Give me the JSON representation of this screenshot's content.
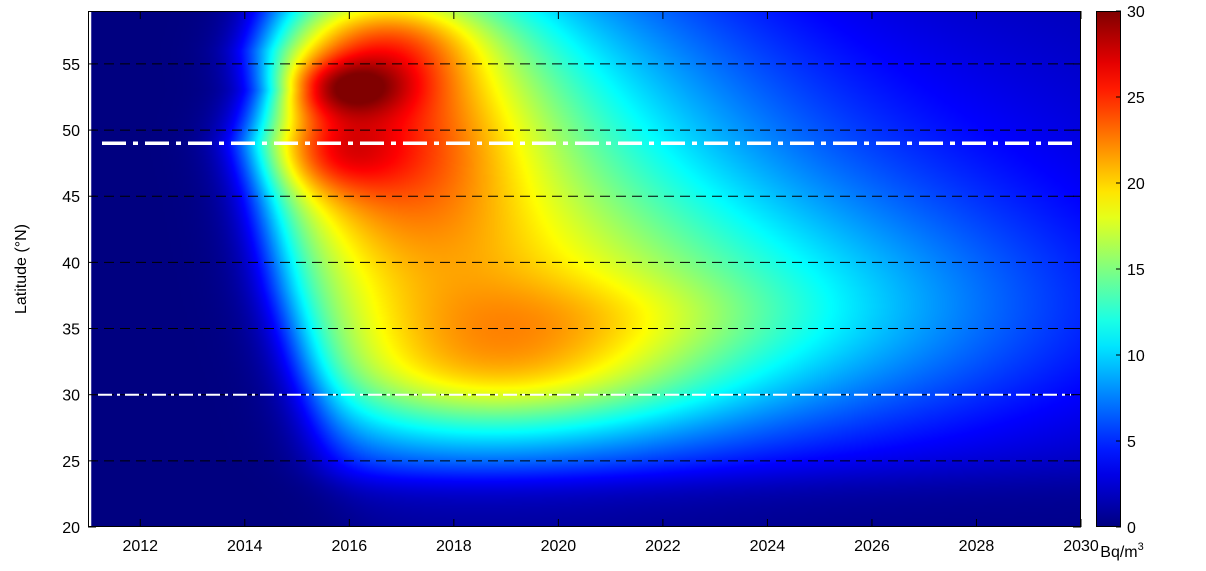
{
  "chart_data": {
    "type": "heatmap",
    "title": "",
    "xlabel": "",
    "ylabel": "Latitude (°N)",
    "xlim": [
      2011,
      2030
    ],
    "ylim": [
      20,
      59
    ],
    "x_ticks": [
      2012,
      2014,
      2016,
      2018,
      2020,
      2022,
      2024,
      2026,
      2028,
      2030
    ],
    "y_ticks": [
      20,
      25,
      30,
      35,
      40,
      45,
      50,
      55
    ],
    "colorbar": {
      "label": "Bq/m",
      "label_superscript": "3",
      "range": [
        0,
        30
      ],
      "ticks": [
        0,
        5,
        10,
        15,
        20,
        25,
        30
      ],
      "colormap": "jet"
    },
    "reference_lines": [
      {
        "latitude": 25,
        "style": "dashed",
        "color": "#000000"
      },
      {
        "latitude": 30,
        "style": "dashed",
        "color": "#000000"
      },
      {
        "latitude": 35,
        "style": "dashed",
        "color": "#000000"
      },
      {
        "latitude": 40,
        "style": "dashed",
        "color": "#000000"
      },
      {
        "latitude": 45,
        "style": "dashed",
        "color": "#000000"
      },
      {
        "latitude": 50,
        "style": "dashed",
        "color": "#000000"
      },
      {
        "latitude": 55,
        "style": "dashed",
        "color": "#000000"
      },
      {
        "latitude": 49,
        "style": "dash-dot",
        "color": "#ffffff",
        "weight": "thick"
      },
      {
        "latitude": 30,
        "style": "dash-dot",
        "color": "#ffffff",
        "weight": "thin"
      }
    ],
    "blobs": [
      {
        "year": 2015.8,
        "lat": 53.2,
        "sx": 0.9,
        "sy": 1.6,
        "value": 8
      },
      {
        "year": 2016.6,
        "lat": 56.8,
        "sx": 1.3,
        "sy": 2.5,
        "value": 6
      },
      {
        "year": 2015.6,
        "lat": 48.3,
        "sx": 0.9,
        "sy": 2.2,
        "value": 5
      },
      {
        "year": 2016.5,
        "lat": 51.0,
        "sx": 2.0,
        "sy": 7.5,
        "value": 13
      },
      {
        "year": 2018.5,
        "lat": 46.0,
        "sx": 3.6,
        "sy": 14.0,
        "value": 11
      },
      {
        "year": 2019.0,
        "lat": 31.5,
        "sx": 2.6,
        "sy": 2.8,
        "value": 5
      },
      {
        "year": 2020.5,
        "lat": 36.0,
        "sx": 2.6,
        "sy": 2.2,
        "value": 2
      },
      {
        "year": 2022.0,
        "lat": 36.0,
        "sx": 4.5,
        "sy": 6.5,
        "value": 6
      },
      {
        "year": 2026.5,
        "lat": 36.0,
        "sx": 4.5,
        "sy": 7.5,
        "value": 3
      },
      {
        "year": 2025.0,
        "lat": 50.0,
        "sx": 4.5,
        "sy": 8.0,
        "value": 2
      },
      {
        "year": 2017.0,
        "lat": 34.0,
        "sx": 3.0,
        "sy": 7.0,
        "value": 4
      }
    ],
    "base_value": 1.2,
    "onset": {
      "lat_anchors": [
        [
          20,
          2016.0
        ],
        [
          24,
          2015.5
        ],
        [
          30,
          2015.2
        ],
        [
          38,
          2014.6
        ],
        [
          45,
          2014.2
        ],
        [
          49,
          2013.9
        ],
        [
          53,
          2014.3
        ],
        [
          56,
          2014.1
        ],
        [
          59,
          2014.3
        ]
      ],
      "width": 0.35
    },
    "lower_edge": {
      "lat": 23.6,
      "width": 0.9
    }
  }
}
